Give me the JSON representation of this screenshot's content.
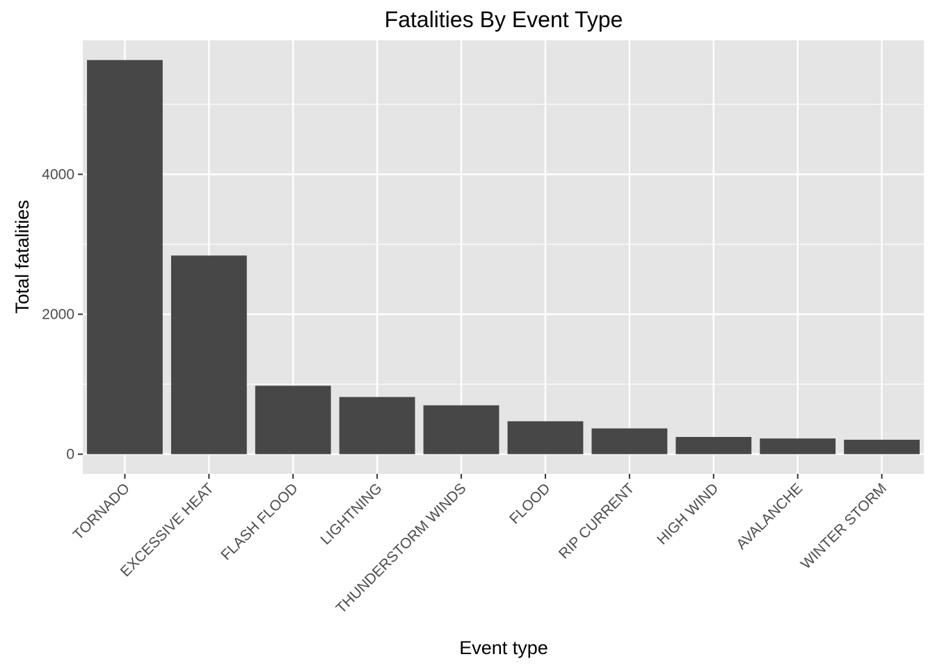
{
  "chart_data": {
    "type": "bar",
    "title": "Fatalities By Event Type",
    "xlabel": "Event type",
    "ylabel": "Total fatalities",
    "categories": [
      "TORNADO",
      "EXCESSIVE HEAT",
      "FLASH FLOOD",
      "LIGHTNING",
      "THUNDERSTORM WINDS",
      "FLOOD",
      "RIP CURRENT",
      "HIGH WIND",
      "AVALANCHE",
      "WINTER STORM"
    ],
    "values": [
      5633,
      2839,
      978,
      817,
      698,
      470,
      368,
      246,
      224,
      206
    ],
    "ylim": [
      -281.65,
      5914.65
    ],
    "y_ticks": [
      0,
      2000,
      4000
    ],
    "y_minor_ticks": [
      1000,
      3000,
      5000
    ],
    "y_tick_labels": [
      "0",
      "2000",
      "4000"
    ],
    "grid": true,
    "legend": "none",
    "colors": {
      "bar": "#474747",
      "panel": "#e5e5e5",
      "grid": "#ffffff",
      "tick": "#333333"
    }
  }
}
